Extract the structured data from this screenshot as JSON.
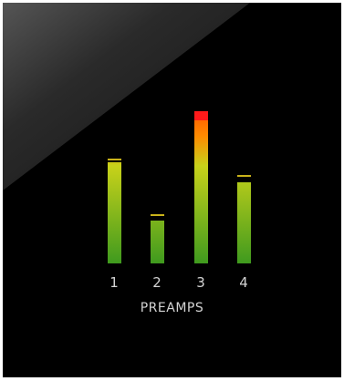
{
  "panel": {
    "background": "#000000",
    "section_label": "PREAMPS"
  },
  "meters": [
    {
      "channel": "1",
      "level": 0.57,
      "peak_hold": 0.58,
      "clip": false
    },
    {
      "channel": "2",
      "level": 0.24,
      "peak_hold": 0.27,
      "clip": false
    },
    {
      "channel": "3",
      "level": 0.81,
      "peak_hold": 0.81,
      "clip": true
    },
    {
      "channel": "4",
      "level": 0.46,
      "peak_hold": 0.49,
      "clip": false
    }
  ],
  "colors": {
    "meter_bottom": "#3f9a1e",
    "meter_mid": "#c8d21a",
    "meter_high": "#ff8a00",
    "meter_top": "#ff2a00",
    "clip": "#ff1a1a",
    "peak_hold": "#c9b21a",
    "label": "#d4d4d4"
  }
}
